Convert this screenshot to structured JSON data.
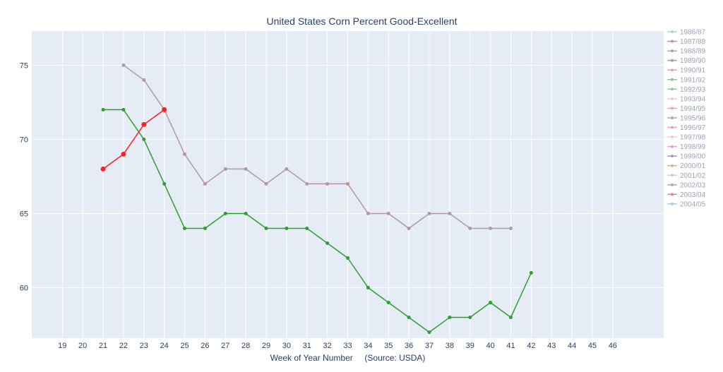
{
  "chart_data": {
    "type": "line",
    "title": "United States Corn Percent Good-Excellent",
    "xlabel": "Week of Year Number     (Source: USDA)",
    "ylabel": "",
    "xlim": [
      17.5,
      48.5
    ],
    "ylim": [
      56.6,
      77.3
    ],
    "x_ticks": [
      19,
      20,
      21,
      22,
      23,
      24,
      25,
      26,
      27,
      28,
      29,
      30,
      31,
      32,
      33,
      34,
      35,
      36,
      37,
      38,
      39,
      40,
      41,
      42,
      43,
      44,
      45,
      46
    ],
    "y_ticks": [
      60,
      65,
      70,
      75
    ],
    "grid": true,
    "plot_bg": "#e5ecf6",
    "legend": {
      "position": "right",
      "entries": [
        {
          "name": "1986/87",
          "color": "#b3cde3"
        },
        {
          "name": "1987/88",
          "color": "#c39199"
        },
        {
          "name": "1988/89",
          "color": "#b49dc0"
        },
        {
          "name": "1989/90",
          "color": "#a39dab"
        },
        {
          "name": "1990/91",
          "color": "#e7a3b8"
        },
        {
          "name": "1991/92",
          "color": "#8fc1a0"
        },
        {
          "name": "1992/93",
          "color": "#9bc59e"
        },
        {
          "name": "1993/94",
          "color": "#f3c7d4"
        },
        {
          "name": "1994/95",
          "color": "#dfa3d8"
        },
        {
          "name": "1995/96",
          "color": "#9bb5a5"
        },
        {
          "name": "1996/97",
          "color": "#e7a7a8"
        },
        {
          "name": "1997/98",
          "color": "#f0c9d6"
        },
        {
          "name": "1998/99",
          "color": "#e79be0"
        },
        {
          "name": "1999/00",
          "color": "#a39db7"
        },
        {
          "name": "2000/01",
          "color": "#d6b19c"
        },
        {
          "name": "2001/02",
          "color": "#c7cdd7"
        },
        {
          "name": "2002/03",
          "color": "#b5a9ad"
        },
        {
          "name": "2003/04",
          "color": "#d9849b"
        },
        {
          "name": "2004/05",
          "color": "#a9cde0"
        }
      ]
    },
    "series": [
      {
        "name": "2002/03",
        "color": "#b5979f",
        "marker_size": 2.5,
        "x": [
          22,
          23,
          24,
          25,
          26,
          27,
          28,
          29,
          30,
          31,
          32,
          33,
          34,
          35,
          36,
          37,
          38,
          39,
          40,
          41
        ],
        "y": [
          75,
          74,
          72,
          69,
          67,
          68,
          68,
          67,
          68,
          67,
          67,
          67,
          65,
          65,
          64,
          65,
          65,
          64,
          64,
          64
        ]
      },
      {
        "name": "1991/92",
        "color": "#2ca02c",
        "marker_size": 2.5,
        "x": [
          21,
          22,
          23,
          24,
          25,
          26,
          27,
          28,
          29,
          30,
          31,
          32,
          33,
          34,
          35,
          36,
          37,
          38,
          39,
          40,
          41,
          42
        ],
        "y": [
          72,
          72,
          70,
          67,
          64,
          64,
          65,
          65,
          64,
          64,
          64,
          63,
          62,
          60,
          59,
          58,
          57,
          58,
          58,
          59,
          58,
          61
        ]
      },
      {
        "name": "",
        "color": "#ff2020",
        "marker_size": 3.5,
        "x": [
          21,
          22,
          23,
          24
        ],
        "y": [
          68,
          69,
          71,
          72
        ]
      }
    ]
  }
}
